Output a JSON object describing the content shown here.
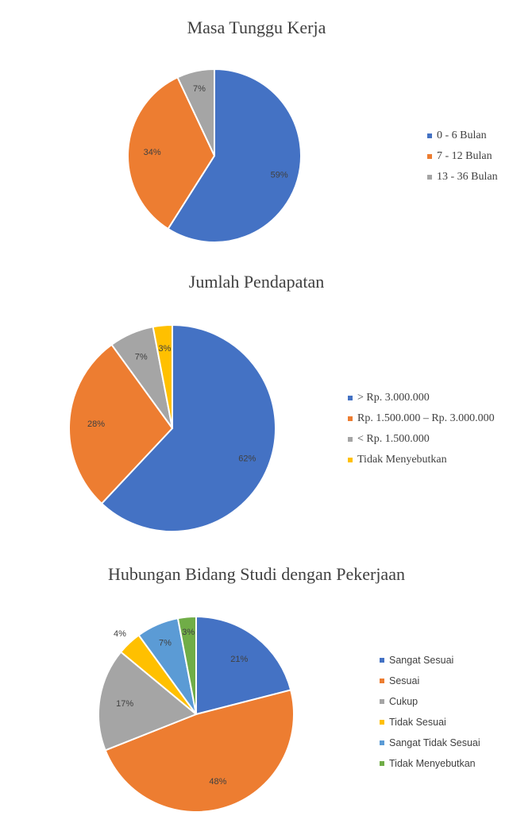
{
  "colors": {
    "blue": "#4472C4",
    "orange": "#ED7D31",
    "gray": "#A5A5A5",
    "gold": "#FFC000",
    "lightblue": "#5B9BD5",
    "green": "#70AD47"
  },
  "chart_data": [
    {
      "type": "pie",
      "title": "Masa Tunggu Kerja",
      "categories": [
        "0 - 6 Bulan",
        "7 - 12 Bulan",
        "13 - 36 Bulan"
      ],
      "values": [
        59,
        34,
        7
      ],
      "labels": [
        "59%",
        "34%",
        "7%"
      ],
      "colors": [
        "#4472C4",
        "#ED7D31",
        "#A5A5A5"
      ],
      "legend_position": "right"
    },
    {
      "type": "pie",
      "title": "Jumlah Pendapatan",
      "categories": [
        "> Rp. 3.000.000",
        "Rp. 1.500.000 – Rp. 3.000.000",
        "< Rp. 1.500.000",
        "Tidak Menyebutkan"
      ],
      "values": [
        62,
        28,
        7,
        3
      ],
      "labels": [
        "62%",
        "28%",
        "7%",
        "3%"
      ],
      "colors": [
        "#4472C4",
        "#ED7D31",
        "#A5A5A5",
        "#FFC000"
      ],
      "legend_position": "right"
    },
    {
      "type": "pie",
      "title": "Hubungan Bidang Studi dengan Pekerjaan",
      "categories": [
        "Sangat Sesuai",
        "Sesuai",
        "Cukup",
        "Tidak Sesuai",
        "Sangat Tidak Sesuai",
        "Tidak Menyebutkan"
      ],
      "values": [
        21,
        48,
        17,
        4,
        7,
        3
      ],
      "labels": [
        "21%",
        "48%",
        "17%",
        "4%",
        "7%",
        "3%"
      ],
      "colors": [
        "#4472C4",
        "#ED7D31",
        "#A5A5A5",
        "#FFC000",
        "#5B9BD5",
        "#70AD47"
      ],
      "legend_position": "right"
    }
  ]
}
